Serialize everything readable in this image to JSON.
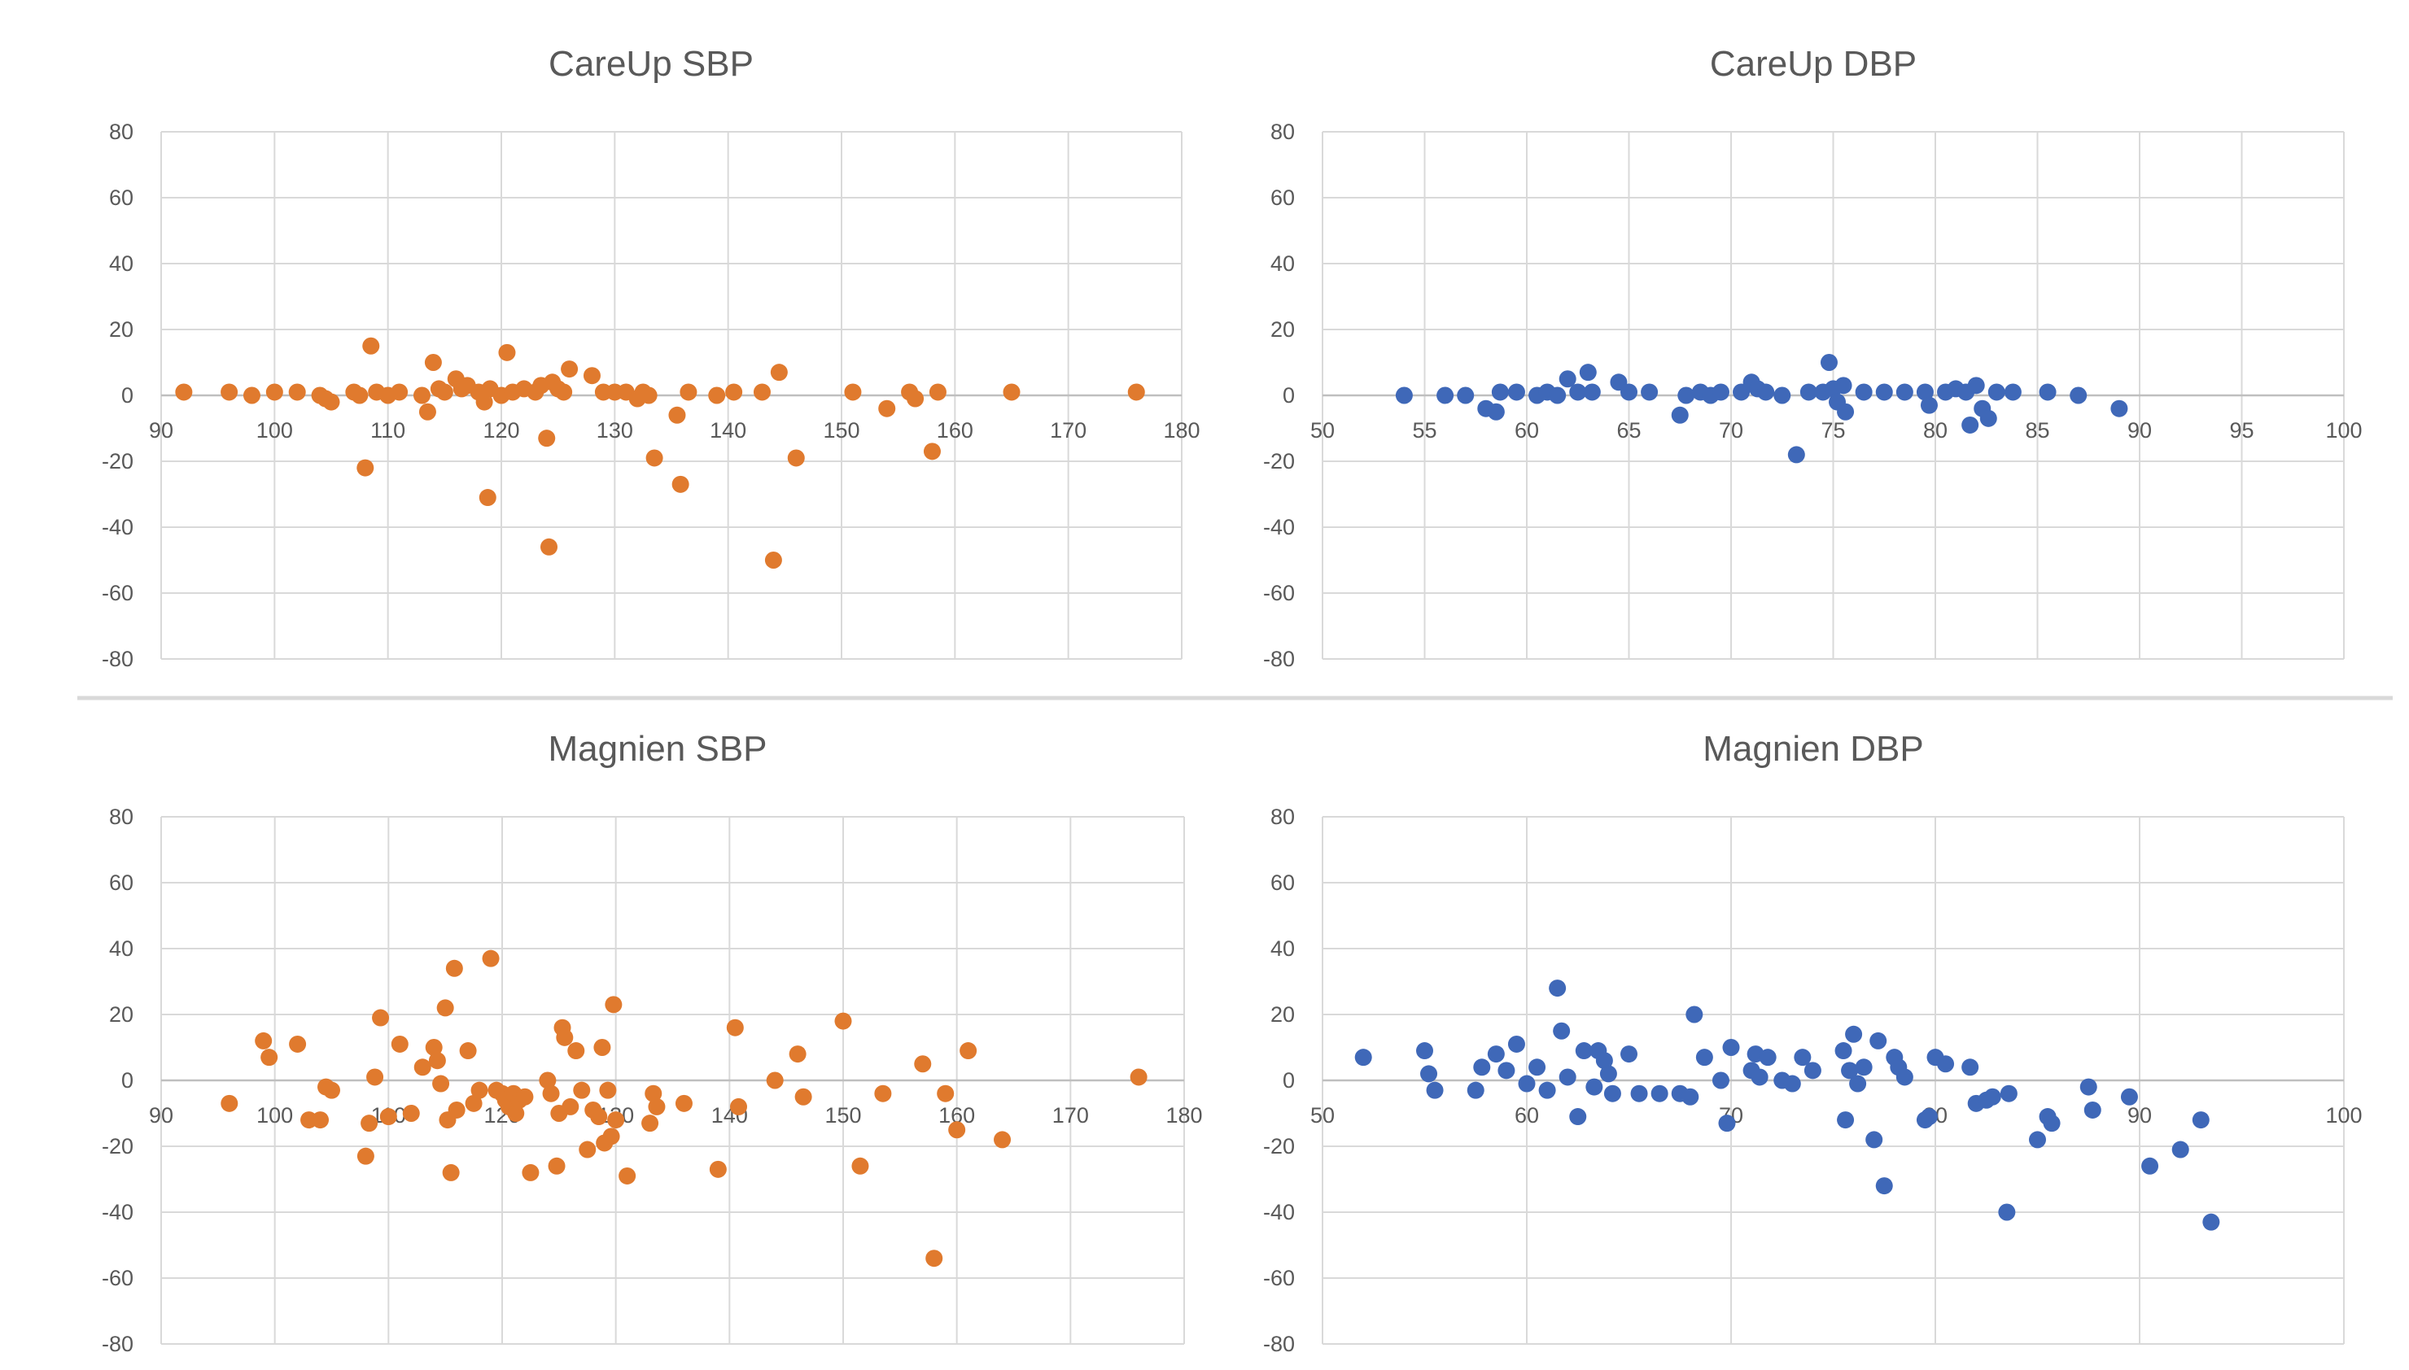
{
  "colors": {
    "sbp": "#E07A2E",
    "dbp": "#3F68B8",
    "grid": "#D9D9D9",
    "text": "#595959"
  },
  "chart_data": [
    {
      "type": "scatter",
      "title": "CareUp SBP",
      "xlim": [
        90,
        180
      ],
      "xticks": [
        90,
        100,
        110,
        120,
        130,
        140,
        150,
        160,
        170,
        180
      ],
      "ylim": [
        -80,
        80
      ],
      "yticks": [
        80,
        60,
        40,
        20,
        0,
        -20,
        -40,
        -60,
        -80
      ],
      "color_key": "sbp",
      "points": [
        [
          92,
          1
        ],
        [
          96,
          1
        ],
        [
          98,
          0
        ],
        [
          100,
          1
        ],
        [
          102,
          1
        ],
        [
          104,
          0
        ],
        [
          104.5,
          -1
        ],
        [
          105,
          -2
        ],
        [
          107,
          1
        ],
        [
          107.5,
          0
        ],
        [
          108,
          -22
        ],
        [
          108.5,
          15
        ],
        [
          109,
          1
        ],
        [
          110,
          0
        ],
        [
          111,
          1
        ],
        [
          113,
          0
        ],
        [
          113.5,
          -5
        ],
        [
          114,
          10
        ],
        [
          114.5,
          2
        ],
        [
          115,
          1
        ],
        [
          116,
          5
        ],
        [
          116.5,
          2
        ],
        [
          117,
          3
        ],
        [
          118,
          1
        ],
        [
          118.5,
          -2
        ],
        [
          118.8,
          -31
        ],
        [
          119,
          2
        ],
        [
          120,
          0
        ],
        [
          120.5,
          13
        ],
        [
          121,
          1
        ],
        [
          122,
          2
        ],
        [
          123,
          1
        ],
        [
          123.5,
          3
        ],
        [
          124,
          -13
        ],
        [
          124.2,
          -46
        ],
        [
          124.5,
          4
        ],
        [
          125,
          2
        ],
        [
          125.5,
          1
        ],
        [
          126,
          8
        ],
        [
          128,
          6
        ],
        [
          129,
          1
        ],
        [
          130,
          1
        ],
        [
          131,
          1
        ],
        [
          132,
          -1
        ],
        [
          132.5,
          1
        ],
        [
          133,
          0
        ],
        [
          133.5,
          -19
        ],
        [
          135.5,
          -6
        ],
        [
          135.8,
          -27
        ],
        [
          136.5,
          1
        ],
        [
          139,
          0
        ],
        [
          140.5,
          1
        ],
        [
          143,
          1
        ],
        [
          144,
          -50
        ],
        [
          144.5,
          7
        ],
        [
          146,
          -19
        ],
        [
          151,
          1
        ],
        [
          154,
          -4
        ],
        [
          156,
          1
        ],
        [
          156.5,
          -1
        ],
        [
          158,
          -17
        ],
        [
          158.5,
          1
        ],
        [
          165,
          1
        ],
        [
          176,
          1
        ]
      ]
    },
    {
      "type": "scatter",
      "title": "CareUp DBP",
      "xlim": [
        50,
        100
      ],
      "xticks": [
        50,
        55,
        60,
        65,
        70,
        75,
        80,
        85,
        90,
        95,
        100
      ],
      "ylim": [
        -80,
        80
      ],
      "yticks": [
        80,
        60,
        40,
        20,
        0,
        -20,
        -40,
        -60,
        -80
      ],
      "color_key": "dbp",
      "points": [
        [
          54,
          0
        ],
        [
          56,
          0
        ],
        [
          57,
          0
        ],
        [
          58,
          -4
        ],
        [
          58.5,
          -5
        ],
        [
          58.7,
          1
        ],
        [
          59.5,
          1
        ],
        [
          60.5,
          0
        ],
        [
          61,
          1
        ],
        [
          61.5,
          0
        ],
        [
          62,
          5
        ],
        [
          62.5,
          1
        ],
        [
          63,
          7
        ],
        [
          63.2,
          1
        ],
        [
          64.5,
          4
        ],
        [
          65,
          1
        ],
        [
          66,
          1
        ],
        [
          67.5,
          -6
        ],
        [
          67.8,
          0
        ],
        [
          68.5,
          1
        ],
        [
          69,
          0
        ],
        [
          69.5,
          1
        ],
        [
          70.5,
          1
        ],
        [
          71,
          4
        ],
        [
          71.3,
          2
        ],
        [
          71.7,
          1
        ],
        [
          72.5,
          0
        ],
        [
          73.2,
          -18
        ],
        [
          73.8,
          1
        ],
        [
          74.5,
          1
        ],
        [
          74.8,
          10
        ],
        [
          75,
          2
        ],
        [
          75.2,
          -2
        ],
        [
          75.5,
          3
        ],
        [
          75.6,
          -5
        ],
        [
          76.5,
          1
        ],
        [
          77.5,
          1
        ],
        [
          78.5,
          1
        ],
        [
          79.5,
          1
        ],
        [
          79.7,
          -3
        ],
        [
          80.5,
          1
        ],
        [
          81,
          2
        ],
        [
          81.5,
          1
        ],
        [
          81.7,
          -9
        ],
        [
          82,
          3
        ],
        [
          82.3,
          -4
        ],
        [
          82.6,
          -7
        ],
        [
          83,
          1
        ],
        [
          83.8,
          1
        ],
        [
          85.5,
          1
        ],
        [
          87,
          0
        ],
        [
          89,
          -4
        ]
      ]
    },
    {
      "type": "scatter",
      "title": "Magnien SBP",
      "xlim": [
        90,
        180
      ],
      "xticks": [
        90,
        100,
        110,
        120,
        130,
        140,
        150,
        160,
        170,
        180
      ],
      "ylim": [
        -80,
        80
      ],
      "yticks": [
        80,
        60,
        40,
        20,
        0,
        -20,
        -40,
        -60,
        -80
      ],
      "color_key": "sbp",
      "points": [
        [
          96,
          -7
        ],
        [
          99,
          12
        ],
        [
          99.5,
          7
        ],
        [
          102,
          11
        ],
        [
          103,
          -12
        ],
        [
          104,
          -12
        ],
        [
          104.5,
          -2
        ],
        [
          105,
          -3
        ],
        [
          108,
          -23
        ],
        [
          108.3,
          -13
        ],
        [
          108.8,
          1
        ],
        [
          109.3,
          19
        ],
        [
          110,
          -11
        ],
        [
          111,
          11
        ],
        [
          112,
          -10
        ],
        [
          113,
          4
        ],
        [
          114,
          10
        ],
        [
          114.3,
          6
        ],
        [
          114.6,
          -1
        ],
        [
          115,
          22
        ],
        [
          115.2,
          -12
        ],
        [
          115.5,
          -28
        ],
        [
          115.8,
          34
        ],
        [
          116,
          -9
        ],
        [
          117,
          9
        ],
        [
          117.5,
          -7
        ],
        [
          118,
          -3
        ],
        [
          119,
          37
        ],
        [
          119.5,
          -3
        ],
        [
          120,
          -4
        ],
        [
          120.3,
          -6
        ],
        [
          120.6,
          -8
        ],
        [
          121,
          -4
        ],
        [
          121.2,
          -10
        ],
        [
          121.5,
          -6
        ],
        [
          122,
          -5
        ],
        [
          122.5,
          -28
        ],
        [
          124,
          0
        ],
        [
          124.3,
          -4
        ],
        [
          124.8,
          -26
        ],
        [
          125,
          -10
        ],
        [
          125.3,
          16
        ],
        [
          125.5,
          13
        ],
        [
          126,
          -8
        ],
        [
          126.5,
          9
        ],
        [
          127,
          -3
        ],
        [
          127.5,
          -21
        ],
        [
          128,
          -9
        ],
        [
          128.5,
          -11
        ],
        [
          128.8,
          10
        ],
        [
          129,
          -19
        ],
        [
          129.3,
          -3
        ],
        [
          129.6,
          -17
        ],
        [
          129.8,
          23
        ],
        [
          130,
          -12
        ],
        [
          131,
          -29
        ],
        [
          133,
          -13
        ],
        [
          133.3,
          -4
        ],
        [
          133.6,
          -8
        ],
        [
          136,
          -7
        ],
        [
          139,
          -27
        ],
        [
          140.5,
          16
        ],
        [
          140.8,
          -8
        ],
        [
          144,
          0
        ],
        [
          146,
          8
        ],
        [
          146.5,
          -5
        ],
        [
          150,
          18
        ],
        [
          151.5,
          -26
        ],
        [
          153.5,
          -4
        ],
        [
          157,
          5
        ],
        [
          158,
          -54
        ],
        [
          159,
          -4
        ],
        [
          160,
          -15
        ],
        [
          161,
          9
        ],
        [
          164,
          -18
        ],
        [
          176,
          1
        ]
      ]
    },
    {
      "type": "scatter",
      "title": "Magnien DBP",
      "xlim": [
        50,
        100
      ],
      "xticks": [
        50,
        60,
        70,
        80,
        90,
        100
      ],
      "ylim": [
        -80,
        80
      ],
      "yticks": [
        80,
        60,
        40,
        20,
        0,
        -20,
        -40,
        -60,
        -80
      ],
      "color_key": "dbp",
      "points": [
        [
          52,
          7
        ],
        [
          55,
          9
        ],
        [
          55.2,
          2
        ],
        [
          55.5,
          -3
        ],
        [
          57.5,
          -3
        ],
        [
          57.8,
          4
        ],
        [
          58.5,
          8
        ],
        [
          59,
          3
        ],
        [
          59.5,
          11
        ],
        [
          60,
          -1
        ],
        [
          60.5,
          4
        ],
        [
          61,
          -3
        ],
        [
          61.5,
          28
        ],
        [
          61.7,
          15
        ],
        [
          62,
          1
        ],
        [
          62.5,
          -11
        ],
        [
          62.8,
          9
        ],
        [
          63.3,
          -2
        ],
        [
          63.5,
          9
        ],
        [
          63.8,
          6
        ],
        [
          64,
          2
        ],
        [
          64.2,
          -4
        ],
        [
          65,
          8
        ],
        [
          65.5,
          -4
        ],
        [
          66.5,
          -4
        ],
        [
          67.5,
          -4
        ],
        [
          68,
          -5
        ],
        [
          68.2,
          20
        ],
        [
          68.7,
          7
        ],
        [
          69.5,
          0
        ],
        [
          69.8,
          -13
        ],
        [
          70,
          10
        ],
        [
          71,
          3
        ],
        [
          71.2,
          8
        ],
        [
          71.4,
          1
        ],
        [
          71.8,
          7
        ],
        [
          72.5,
          0
        ],
        [
          73,
          -1
        ],
        [
          73.5,
          7
        ],
        [
          74,
          3
        ],
        [
          75.5,
          9
        ],
        [
          75.6,
          -12
        ],
        [
          75.8,
          3
        ],
        [
          76,
          14
        ],
        [
          76.2,
          -1
        ],
        [
          76.5,
          4
        ],
        [
          77,
          -18
        ],
        [
          77.2,
          12
        ],
        [
          77.5,
          -32
        ],
        [
          78,
          7
        ],
        [
          78.2,
          4
        ],
        [
          78.5,
          1
        ],
        [
          79.5,
          -12
        ],
        [
          79.7,
          -11
        ],
        [
          80,
          7
        ],
        [
          80.5,
          5
        ],
        [
          81.7,
          4
        ],
        [
          82,
          -7
        ],
        [
          82.5,
          -6
        ],
        [
          82.8,
          -5
        ],
        [
          83.5,
          -40
        ],
        [
          83.6,
          -4
        ],
        [
          85,
          -18
        ],
        [
          85.5,
          -11
        ],
        [
          85.7,
          -13
        ],
        [
          87.5,
          -2
        ],
        [
          87.7,
          -9
        ],
        [
          89.5,
          -5
        ],
        [
          90.5,
          -26
        ],
        [
          92,
          -21
        ],
        [
          93,
          -12
        ],
        [
          93.5,
          -43
        ]
      ]
    }
  ]
}
